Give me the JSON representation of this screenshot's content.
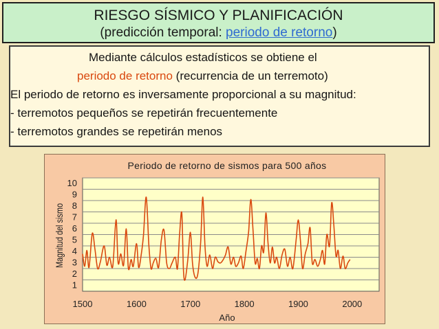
{
  "header": {
    "title": "RIESGO SÍSMICO Y PLANIFICACIÓN",
    "subtitle_open": "(predicción temporal: ",
    "subtitle_link": "periodo de retorno",
    "subtitle_close": ")"
  },
  "body_text": {
    "line1": "Mediante cálculos estadísticos se obtiene el",
    "line2_highlight": "periodo de retorno",
    "line2_rest": " (recurrencia de un terremoto)",
    "line3": "El periodo de retorno es inversamente proporcional a su magnitud:",
    "line4": "- terremotos pequeños se repetirán frecuentemente",
    "line5": "- terremotos grandes se repetirán menos"
  },
  "colors": {
    "title_bg": "#c9f0c9",
    "page_bg": "#f3e8bd",
    "chart_bg": "#f8c9a4",
    "plot_bg": "#ffffc8",
    "series": "#d9480f",
    "highlight": "#d9480f",
    "link": "#2f6ad1"
  },
  "chart_data": {
    "type": "line",
    "title": "Periodo de retorno de sismos para 500 años",
    "xlabel": "Año",
    "ylabel": "Magnitud del sismo",
    "xlim": [
      1500,
      2050
    ],
    "ylim": [
      0,
      10
    ],
    "x_ticks": [
      "1500",
      "1600",
      "1700",
      "1800",
      "1900",
      "2000"
    ],
    "y_ticks": [
      "1",
      "2",
      "3",
      "4",
      "5",
      "6",
      "7",
      "8",
      "9",
      "10"
    ],
    "grid": "horizontal",
    "series": [
      {
        "points": [
          [
            1500,
            3.3
          ],
          [
            1504,
            2.2
          ],
          [
            1508,
            3.6
          ],
          [
            1512,
            2.1
          ],
          [
            1518,
            5.1
          ],
          [
            1523,
            3.7
          ],
          [
            1528,
            2.0
          ],
          [
            1533,
            2.6
          ],
          [
            1540,
            4.0
          ],
          [
            1545,
            2.3
          ],
          [
            1550,
            3.0
          ],
          [
            1556,
            2.2
          ],
          [
            1562,
            6.3
          ],
          [
            1566,
            2.5
          ],
          [
            1571,
            3.3
          ],
          [
            1576,
            2.3
          ],
          [
            1581,
            5.5
          ],
          [
            1585,
            2.0
          ],
          [
            1590,
            2.8
          ],
          [
            1594,
            2.2
          ],
          [
            1600,
            4.2
          ],
          [
            1604,
            2.1
          ],
          [
            1609,
            3.3
          ],
          [
            1613,
            5.0
          ],
          [
            1618,
            8.3
          ],
          [
            1623,
            4.0
          ],
          [
            1627,
            2.0
          ],
          [
            1631,
            2.5
          ],
          [
            1636,
            2.9
          ],
          [
            1641,
            2.1
          ],
          [
            1646,
            4.5
          ],
          [
            1651,
            5.4
          ],
          [
            1656,
            2.5
          ],
          [
            1661,
            2.0
          ],
          [
            1666,
            2.5
          ],
          [
            1672,
            3.0
          ],
          [
            1676,
            2.0
          ],
          [
            1680,
            5.1
          ],
          [
            1684,
            6.9
          ],
          [
            1687,
            2.0
          ],
          [
            1690,
            1.0
          ],
          [
            1695,
            2.7
          ],
          [
            1700,
            5.2
          ],
          [
            1704,
            2.4
          ],
          [
            1709,
            1.2
          ],
          [
            1714,
            1.6
          ],
          [
            1719,
            4.3
          ],
          [
            1723,
            8.3
          ],
          [
            1727,
            4.0
          ],
          [
            1731,
            2.2
          ],
          [
            1736,
            3.2
          ],
          [
            1741,
            2.0
          ],
          [
            1746,
            3.0
          ],
          [
            1751,
            2.6
          ],
          [
            1756,
            2.5
          ],
          [
            1761,
            2.8
          ],
          [
            1765,
            3.2
          ],
          [
            1770,
            3.9
          ],
          [
            1775,
            2.4
          ],
          [
            1780,
            3.0
          ],
          [
            1784,
            2.2
          ],
          [
            1789,
            2.5
          ],
          [
            1794,
            3.1
          ],
          [
            1798,
            2.0
          ],
          [
            1803,
            3.5
          ],
          [
            1808,
            5.3
          ],
          [
            1812,
            8.1
          ],
          [
            1816,
            5.5
          ],
          [
            1820,
            2.5
          ],
          [
            1824,
            2.9
          ],
          [
            1828,
            2.0
          ],
          [
            1832,
            4.0
          ],
          [
            1836,
            3.5
          ],
          [
            1840,
            6.9
          ],
          [
            1844,
            4.2
          ],
          [
            1848,
            2.5
          ],
          [
            1852,
            3.9
          ],
          [
            1856,
            2.5
          ],
          [
            1860,
            3.0
          ],
          [
            1865,
            2.0
          ],
          [
            1870,
            3.2
          ],
          [
            1875,
            3.7
          ],
          [
            1880,
            2.2
          ],
          [
            1885,
            3.0
          ],
          [
            1890,
            2.0
          ],
          [
            1896,
            4.5
          ],
          [
            1900,
            6.3
          ],
          [
            1904,
            4.5
          ],
          [
            1908,
            2.0
          ],
          [
            1913,
            3.3
          ],
          [
            1918,
            4.2
          ],
          [
            1922,
            5.6
          ],
          [
            1926,
            2.5
          ],
          [
            1931,
            2.8
          ],
          [
            1936,
            2.2
          ],
          [
            1941,
            2.8
          ],
          [
            1945,
            3.6
          ],
          [
            1949,
            2.4
          ],
          [
            1953,
            5.0
          ],
          [
            1958,
            4.0
          ],
          [
            1962,
            7.8
          ],
          [
            1966,
            5.8
          ],
          [
            1970,
            3.1
          ],
          [
            1974,
            3.6
          ],
          [
            1978,
            2.0
          ],
          [
            1983,
            3.1
          ],
          [
            1987,
            2.0
          ],
          [
            1992,
            2.5
          ],
          [
            1996,
            2.8
          ]
        ]
      }
    ]
  }
}
